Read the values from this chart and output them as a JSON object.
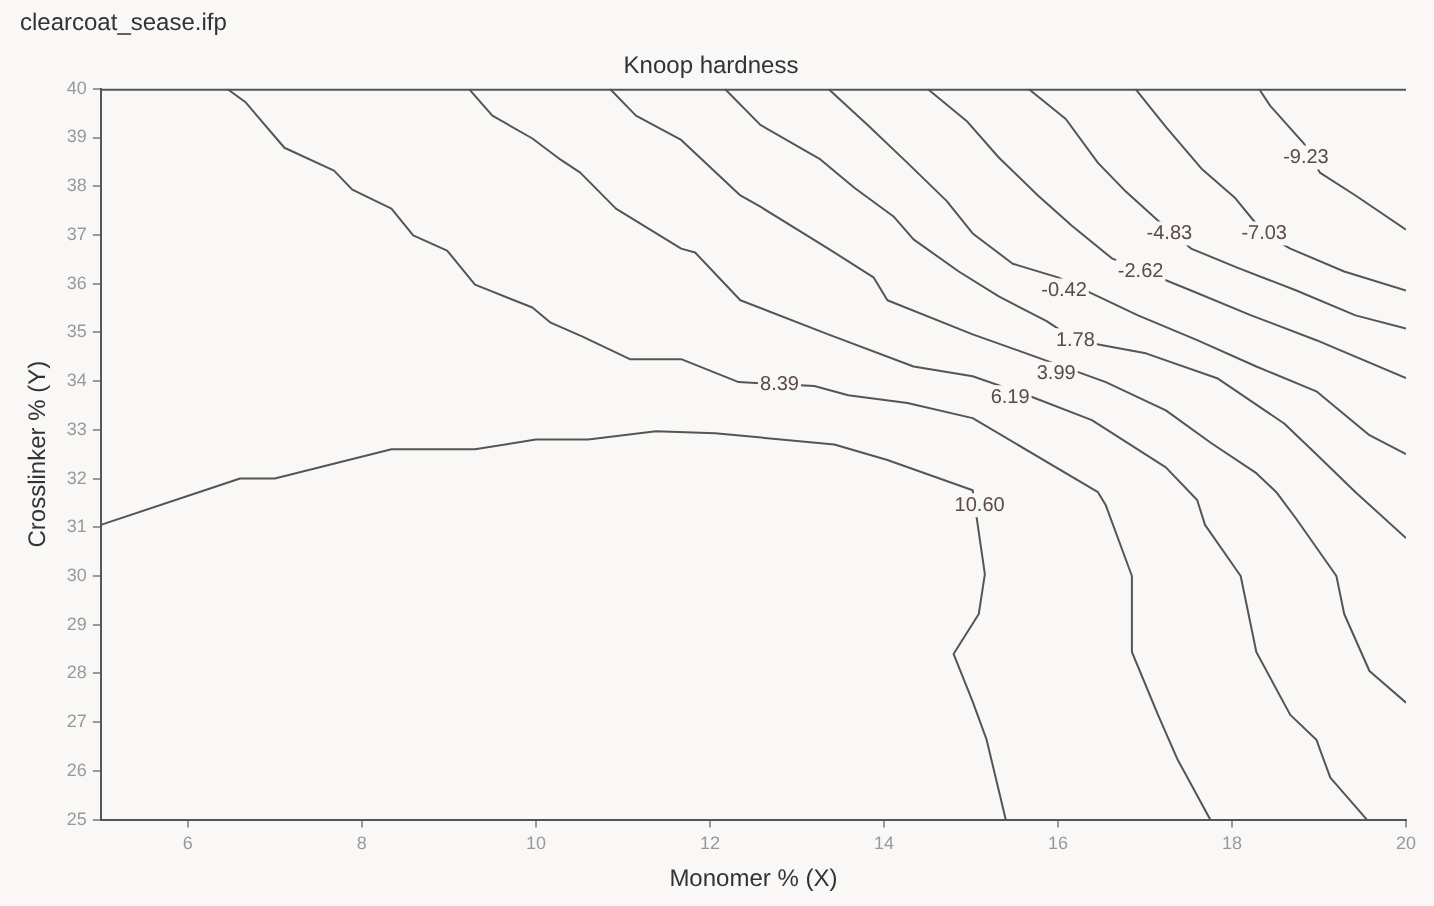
{
  "chart_data": {
    "type": "line",
    "title": "Knoop hardness",
    "xlabel": "Monomer % (X)",
    "ylabel": "Crosslinker % (Y)",
    "xlim": [
      5,
      20
    ],
    "xticks": [
      6,
      8,
      10,
      12,
      14,
      16,
      18,
      20
    ],
    "ylim": [
      25,
      40
    ],
    "yticks": [
      25,
      26,
      27,
      28,
      29,
      30,
      31,
      32,
      33,
      34,
      35,
      36,
      37,
      38,
      39,
      40
    ],
    "grid": false,
    "legend": false,
    "marker": "none",
    "line_style": "solid",
    "annotations": [
      "clearcoat_sease.ifp",
      {
        "text": "10.60",
        "x": 15.1,
        "y": 31.45
      },
      {
        "text": "8.39",
        "x": 12.8,
        "y": 33.93
      },
      {
        "text": "6.19",
        "x": 15.45,
        "y": 33.67
      },
      {
        "text": "3.99",
        "x": 15.98,
        "y": 34.15
      },
      {
        "text": "1.78",
        "x": 16.2,
        "y": 34.84
      },
      {
        "text": "-0.42",
        "x": 16.07,
        "y": 35.86
      },
      {
        "text": "-2.62",
        "x": 16.95,
        "y": 36.25
      },
      {
        "text": "-4.83",
        "x": 17.28,
        "y": 37.03
      },
      {
        "text": "-7.03",
        "x": 18.37,
        "y": 37.03
      },
      {
        "text": "-9.23",
        "x": 18.85,
        "y": 38.59
      }
    ],
    "series": [
      {
        "color": "#555555",
        "x": [
          5,
          6.6,
          7.0,
          8.34,
          9.3,
          10.0,
          10.6,
          11.38,
          12.06,
          13.43,
          14.04,
          15.02,
          15.16,
          15.09,
          14.8,
          15.02,
          15.18,
          15.4
        ],
        "values": [
          31.05,
          32.0,
          32.0,
          32.6,
          32.6,
          32.8,
          32.8,
          32.97,
          32.93,
          32.7,
          32.38,
          31.76,
          30.04,
          29.22,
          28.4,
          27.42,
          26.64,
          25
        ]
      },
      {
        "color": "#555555",
        "x": [
          6.45,
          6.66,
          7.11,
          7.68,
          7.89,
          8.34,
          8.59,
          8.98,
          9.3,
          9.96,
          10.17,
          10.53,
          11.08,
          11.67,
          12.33,
          13.2,
          13.59,
          14.27,
          15.02,
          16.46,
          16.55,
          16.85,
          16.85,
          17.15,
          17.37,
          17.75
        ],
        "values": [
          40,
          39.73,
          38.79,
          38.32,
          37.93,
          37.54,
          36.99,
          36.68,
          35.98,
          35.51,
          35.2,
          34.92,
          34.45,
          34.45,
          33.98,
          33.9,
          33.71,
          33.55,
          33.24,
          31.72,
          31.45,
          30.0,
          28.44,
          27.15,
          26.25,
          25
        ]
      },
      {
        "color": "#555555",
        "x": [
          9.23,
          9.5,
          9.96,
          10.28,
          10.51,
          10.92,
          11.67,
          11.83,
          12.35,
          13.36,
          14.34,
          15.02,
          15.71,
          16.39,
          17.24,
          17.6,
          17.69,
          18.1,
          18.28,
          18.67,
          18.97,
          19.13,
          19.55
        ],
        "values": [
          40,
          39.45,
          38.98,
          38.55,
          38.28,
          37.54,
          36.72,
          36.64,
          35.66,
          34.96,
          34.3,
          34.1,
          33.67,
          33.2,
          32.23,
          31.56,
          31.05,
          30.0,
          28.44,
          27.15,
          26.64,
          25.86,
          25
        ]
      },
      {
        "color": "#555555",
        "x": [
          10.85,
          11.15,
          11.67,
          12.35,
          12.58,
          13.36,
          13.88,
          14.04,
          15.02,
          15.93,
          16.55,
          17.24,
          17.76,
          18.28,
          18.51,
          18.74,
          19.2,
          19.29,
          19.58,
          20
        ],
        "values": [
          40,
          39.45,
          38.95,
          37.81,
          37.58,
          36.72,
          36.13,
          35.66,
          34.96,
          34.38,
          33.98,
          33.4,
          32.73,
          32.11,
          31.72,
          31.17,
          30.0,
          29.22,
          28.05,
          27.4
        ]
      },
      {
        "color": "#555555",
        "x": [
          12.17,
          12.58,
          13.27,
          13.66,
          14.11,
          14.34,
          14.86,
          15.32,
          15.87,
          16.2,
          17.01,
          17.83,
          18.6,
          18.97,
          19.42,
          20
        ],
        "values": [
          40,
          39.26,
          38.55,
          37.97,
          37.38,
          36.91,
          36.25,
          35.74,
          35.23,
          34.84,
          34.57,
          34.06,
          33.13,
          32.5,
          31.72,
          30.78
        ]
      },
      {
        "color": "#555555",
        "x": [
          13.36,
          13.81,
          14.27,
          14.72,
          15.02,
          15.48,
          16.0,
          16.92,
          17.6,
          18.28,
          18.97,
          19.58,
          20
        ],
        "values": [
          40,
          39.26,
          38.48,
          37.7,
          37.03,
          36.41,
          36.13,
          35.35,
          34.84,
          34.3,
          33.79,
          32.89,
          32.5
        ]
      },
      {
        "color": "#555555",
        "x": [
          14.5,
          14.95,
          15.32,
          15.77,
          16.16,
          16.62,
          17.53,
          18.22,
          18.97,
          20
        ],
        "values": [
          40,
          39.34,
          38.59,
          37.81,
          37.19,
          36.52,
          35.86,
          35.35,
          34.84,
          34.06
        ]
      },
      {
        "color": "#555555",
        "x": [
          15.66,
          16.09,
          16.46,
          16.78,
          17.19,
          17.53,
          18.06,
          18.74,
          19.42,
          20
        ],
        "values": [
          40,
          39.38,
          38.48,
          37.89,
          37.23,
          36.72,
          36.33,
          35.86,
          35.35,
          35.08
        ]
      },
      {
        "color": "#555555",
        "x": [
          16.89,
          17.24,
          17.65,
          18.03,
          18.37,
          18.67,
          19.29,
          20
        ],
        "values": [
          40,
          39.22,
          38.36,
          37.77,
          37.03,
          36.72,
          36.25,
          35.86
        ]
      },
      {
        "color": "#555555",
        "x": [
          18.31,
          18.44,
          18.83,
          19.01,
          19.42,
          20
        ],
        "values": [
          40,
          39.65,
          38.87,
          38.28,
          37.81,
          37.11
        ]
      }
    ]
  }
}
